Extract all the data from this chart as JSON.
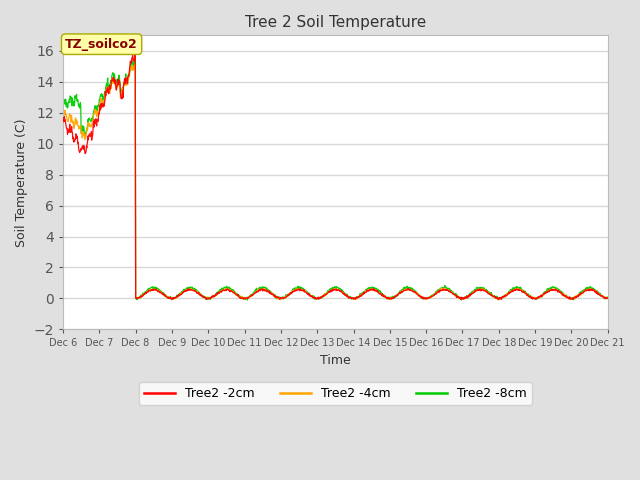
{
  "title": "Tree 2 Soil Temperature",
  "xlabel": "Time",
  "ylabel": "Soil Temperature (C)",
  "ylim": [
    -2,
    17
  ],
  "yticks": [
    -2,
    0,
    2,
    4,
    6,
    8,
    10,
    12,
    14,
    16
  ],
  "annotation_text": "TZ_soilco2",
  "fig_bg_color": "#E0E0E0",
  "plot_bg_color": "#FFFFFF",
  "grid_color": "#D8D8D8",
  "legend_entries": [
    "Tree2 -2cm",
    "Tree2 -4cm",
    "Tree2 -8cm"
  ],
  "line_colors": [
    "#FF0000",
    "#FFA500",
    "#00CC00"
  ],
  "break_hour": 48,
  "total_hours": 360,
  "n_points": 1440
}
